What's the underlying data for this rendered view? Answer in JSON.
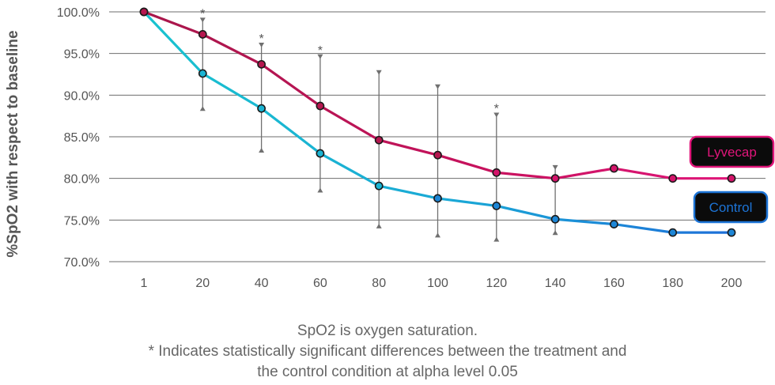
{
  "chart_data": {
    "type": "line",
    "categories": [
      "1",
      "20",
      "40",
      "60",
      "80",
      "100",
      "120",
      "140",
      "160",
      "180",
      "200"
    ],
    "ylabel": "%SpO2 with respect to baseline",
    "yticks": [
      "100.0%",
      "95.0%",
      "90.0%",
      "85.0%",
      "80.0%",
      "75.0%",
      "70.0%"
    ],
    "ylim": [
      70,
      100
    ],
    "grid": true,
    "series": [
      {
        "name": "Lyvecap",
        "color": "#b5174f",
        "legend_color": "#e0167a",
        "values": [
          100.0,
          97.3,
          93.7,
          88.7,
          84.6,
          82.8,
          80.7,
          80.0,
          81.2,
          80.0,
          80.0
        ]
      },
      {
        "name": "Control",
        "color": "#19b8d2",
        "color_end": "#1d74d6",
        "values": [
          100.0,
          92.6,
          88.4,
          83.0,
          79.1,
          77.6,
          76.7,
          75.1,
          74.5,
          73.5,
          73.5
        ]
      }
    ],
    "error_bars": [
      {
        "category": "20",
        "low": 88.2,
        "high": 99.2
      },
      {
        "category": "40",
        "low": 83.2,
        "high": 96.2
      },
      {
        "category": "60",
        "low": 78.4,
        "high": 94.8
      },
      {
        "category": "80",
        "low": 74.1,
        "high": 92.9
      },
      {
        "category": "100",
        "low": 73.0,
        "high": 91.2
      },
      {
        "category": "120",
        "low": 72.5,
        "high": 87.8
      },
      {
        "category": "140",
        "low": 73.3,
        "high": 81.5
      }
    ],
    "significance_markers": [
      {
        "category": "20",
        "label": "*"
      },
      {
        "category": "40",
        "label": "*"
      },
      {
        "category": "60",
        "label": "*"
      },
      {
        "category": "120",
        "label": "*"
      }
    ]
  },
  "footnote": {
    "line1": "SpO2 is oxygen saturation.",
    "line2": "* Indicates statistically significant differences between the treatment and",
    "line3": "the control condition at alpha level 0.05"
  }
}
